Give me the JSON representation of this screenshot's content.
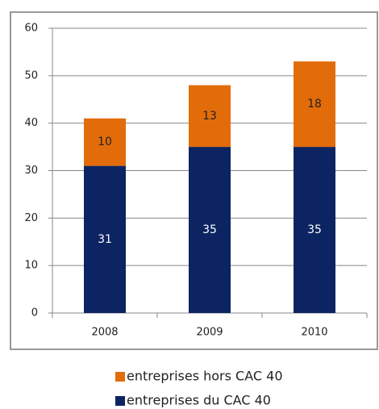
{
  "chart_data": {
    "type": "stacked_bar",
    "categories": [
      "2008",
      "2009",
      "2010"
    ],
    "series": [
      {
        "name": "entreprises du CAC 40",
        "color": "#0d2462",
        "values": [
          31,
          35,
          35
        ]
      },
      {
        "name": "entreprises hors CAC 40",
        "color": "#e36c0a",
        "values": [
          10,
          13,
          18
        ]
      }
    ],
    "ylim": [
      0,
      60
    ],
    "yticks": [
      0,
      10,
      20,
      30,
      40,
      50,
      60
    ],
    "grid": true
  }
}
